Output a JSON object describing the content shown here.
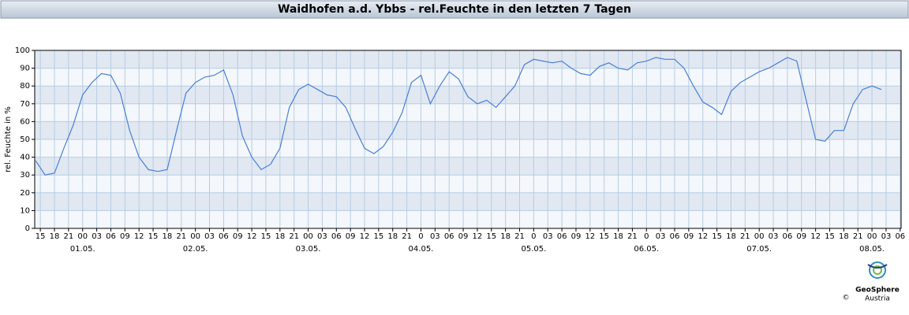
{
  "chart_data": {
    "type": "line",
    "title": "Waidhofen a.d. Ybbs - rel.Feuchte in den letzten 7 Tagen",
    "y_label": "rel. Feuchte in %",
    "brand": "GeoSphere",
    "brand_sub": "Austria",
    "copyright": "©",
    "x": [
      -10,
      -8,
      -6,
      -4,
      -2,
      0,
      2,
      4,
      6,
      8,
      10,
      12,
      14,
      16,
      18,
      20,
      22,
      24,
      26,
      28,
      30,
      32,
      34,
      36,
      38,
      40,
      42,
      44,
      46,
      48,
      50,
      52,
      54,
      56,
      58,
      60,
      62,
      64,
      66,
      68,
      70,
      72,
      74,
      76,
      78,
      80,
      82,
      84,
      86,
      88,
      90,
      92,
      94,
      96,
      98,
      100,
      102,
      104,
      106,
      108,
      110,
      112,
      114,
      116,
      118,
      120,
      122,
      124,
      126,
      128,
      130,
      132,
      134,
      136,
      138,
      140,
      142,
      144,
      146,
      148,
      150,
      152,
      154,
      156,
      158,
      160,
      162,
      164,
      166,
      168,
      170
    ],
    "series": [
      {
        "color": "#4a7fd8",
        "values": [
          38,
          30,
          31,
          45,
          58,
          75,
          82,
          87,
          86,
          76,
          55,
          40,
          33,
          32,
          33,
          55,
          76,
          82,
          85,
          86,
          89,
          75,
          52,
          40,
          33,
          36,
          45,
          68,
          78,
          81,
          78,
          75,
          74,
          68,
          56,
          45,
          42,
          46,
          54,
          65,
          82,
          86,
          70,
          80,
          88,
          84,
          74,
          70,
          72,
          68,
          74,
          80,
          92,
          95,
          94,
          93,
          94,
          90,
          87,
          86,
          91,
          93,
          90,
          89,
          93,
          94,
          96,
          95,
          95,
          90,
          80,
          71,
          68,
          64,
          77,
          82,
          85,
          88,
          90,
          93,
          96,
          94,
          72,
          50,
          49,
          55,
          55,
          70,
          78,
          80,
          78
        ]
      }
    ],
    "xlim": [
      -10.2,
      174.2
    ],
    "ylim": [
      0,
      100
    ],
    "yticks": [
      0,
      10,
      20,
      30,
      40,
      50,
      60,
      70,
      80,
      90,
      100
    ],
    "xticks": [
      {
        "value": -9,
        "label": "15"
      },
      {
        "value": -6,
        "label": "18"
      },
      {
        "value": -3,
        "label": "21"
      },
      {
        "value": 0,
        "label": "00"
      },
      {
        "value": 3,
        "label": "03"
      },
      {
        "value": 6,
        "label": "06"
      },
      {
        "value": 9,
        "label": "09"
      },
      {
        "value": 12,
        "label": "12"
      },
      {
        "value": 15,
        "label": "15"
      },
      {
        "value": 18,
        "label": "18"
      },
      {
        "value": 21,
        "label": "21"
      },
      {
        "value": 24,
        "label": "00"
      },
      {
        "value": 27,
        "label": "03"
      },
      {
        "value": 30,
        "label": "06"
      },
      {
        "value": 33,
        "label": "09"
      },
      {
        "value": 36,
        "label": "12"
      },
      {
        "value": 39,
        "label": "15"
      },
      {
        "value": 42,
        "label": "18"
      },
      {
        "value": 45,
        "label": "21"
      },
      {
        "value": 48,
        "label": "00"
      },
      {
        "value": 51,
        "label": "03"
      },
      {
        "value": 54,
        "label": "06"
      },
      {
        "value": 57,
        "label": "09"
      },
      {
        "value": 60,
        "label": "12"
      },
      {
        "value": 63,
        "label": "15"
      },
      {
        "value": 66,
        "label": "18"
      },
      {
        "value": 69,
        "label": "21"
      },
      {
        "value": 72,
        "label": "0"
      },
      {
        "value": 75,
        "label": "03"
      },
      {
        "value": 78,
        "label": "06"
      },
      {
        "value": 81,
        "label": "09"
      },
      {
        "value": 84,
        "label": "12"
      },
      {
        "value": 87,
        "label": "15"
      },
      {
        "value": 90,
        "label": "18"
      },
      {
        "value": 93,
        "label": "21"
      },
      {
        "value": 96,
        "label": "0"
      },
      {
        "value": 99,
        "label": "03"
      },
      {
        "value": 102,
        "label": "06"
      },
      {
        "value": 105,
        "label": "09"
      },
      {
        "value": 108,
        "label": "12"
      },
      {
        "value": 111,
        "label": "15"
      },
      {
        "value": 114,
        "label": "18"
      },
      {
        "value": 117,
        "label": "21"
      },
      {
        "value": 120,
        "label": "0"
      },
      {
        "value": 123,
        "label": "03"
      },
      {
        "value": 126,
        "label": "06"
      },
      {
        "value": 129,
        "label": "09"
      },
      {
        "value": 132,
        "label": "12"
      },
      {
        "value": 135,
        "label": "15"
      },
      {
        "value": 138,
        "label": "18"
      },
      {
        "value": 141,
        "label": "21"
      },
      {
        "value": 144,
        "label": "00"
      },
      {
        "value": 147,
        "label": "03"
      },
      {
        "value": 150,
        "label": "06"
      },
      {
        "value": 153,
        "label": "09"
      },
      {
        "value": 156,
        "label": "12"
      },
      {
        "value": 159,
        "label": "15"
      },
      {
        "value": 162,
        "label": "18"
      },
      {
        "value": 165,
        "label": "21"
      },
      {
        "value": 168,
        "label": "00"
      },
      {
        "value": 171,
        "label": "03"
      },
      {
        "value": 174,
        "label": "06"
      }
    ],
    "day_labels": [
      {
        "value": 0,
        "label": "01.05."
      },
      {
        "value": 24,
        "label": "02.05."
      },
      {
        "value": 48,
        "label": "03.05."
      },
      {
        "value": 72,
        "label": "04.05."
      },
      {
        "value": 96,
        "label": "05.05."
      },
      {
        "value": 120,
        "label": "06.05."
      },
      {
        "value": 144,
        "label": "07.05."
      },
      {
        "value": 168,
        "label": "08.05."
      }
    ],
    "grid": true
  }
}
